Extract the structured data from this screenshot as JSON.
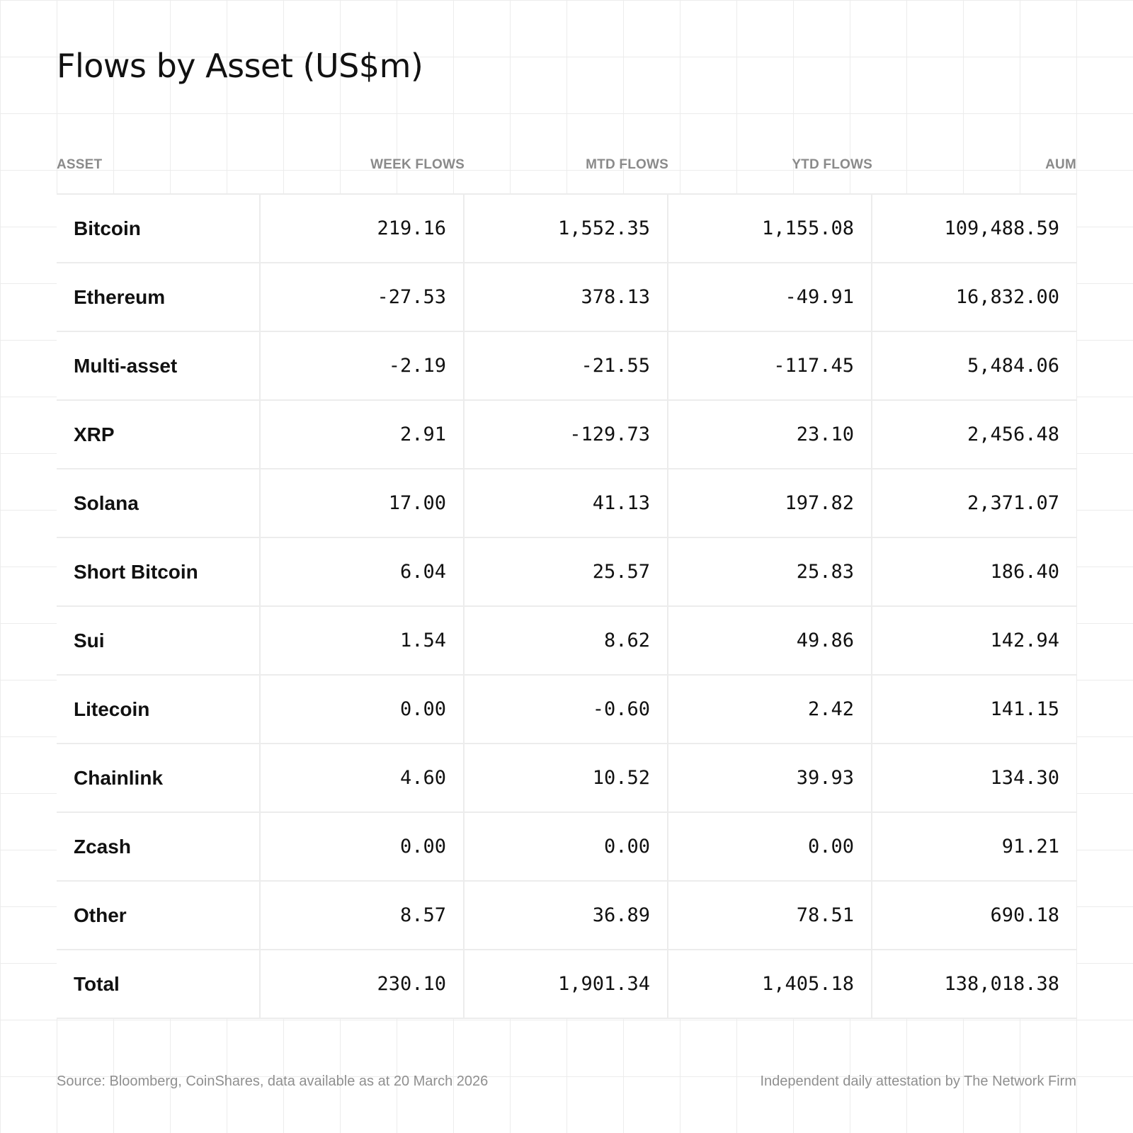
{
  "chart_data": {
    "type": "table",
    "title": "Flows by Asset (US$m)",
    "columns": [
      "ASSET",
      "WEEK FLOWS",
      "MTD FLOWS",
      "YTD FLOWS",
      "AUM"
    ],
    "rows": [
      [
        "Bitcoin",
        "219.16",
        "1,552.35",
        "1,155.08",
        "109,488.59"
      ],
      [
        "Ethereum",
        "-27.53",
        "378.13",
        "-49.91",
        "16,832.00"
      ],
      [
        "Multi-asset",
        "-2.19",
        "-21.55",
        "-117.45",
        "5,484.06"
      ],
      [
        "XRP",
        "2.91",
        "-129.73",
        "23.10",
        "2,456.48"
      ],
      [
        "Solana",
        "17.00",
        "41.13",
        "197.82",
        "2,371.07"
      ],
      [
        "Short Bitcoin",
        "6.04",
        "25.57",
        "25.83",
        "186.40"
      ],
      [
        "Sui",
        "1.54",
        "8.62",
        "49.86",
        "142.94"
      ],
      [
        "Litecoin",
        "0.00",
        "-0.60",
        "2.42",
        "141.15"
      ],
      [
        "Chainlink",
        "4.60",
        "10.52",
        "39.93",
        "134.30"
      ],
      [
        "Zcash",
        "0.00",
        "0.00",
        "0.00",
        "91.21"
      ],
      [
        "Other",
        "8.57",
        "36.89",
        "78.51",
        "690.18"
      ],
      [
        "Total",
        "230.10",
        "1,901.34",
        "1,405.18",
        "138,018.38"
      ]
    ]
  },
  "footer": {
    "source": "Source: Bloomberg, CoinShares, data available as at 20 March 2026",
    "attestation": "Independent daily attestation by The Network Firm"
  },
  "colors": {
    "grid": "#ececec",
    "header_text": "#8a8a8a",
    "footer_text": "#8f8f8f",
    "text": "#111111"
  }
}
